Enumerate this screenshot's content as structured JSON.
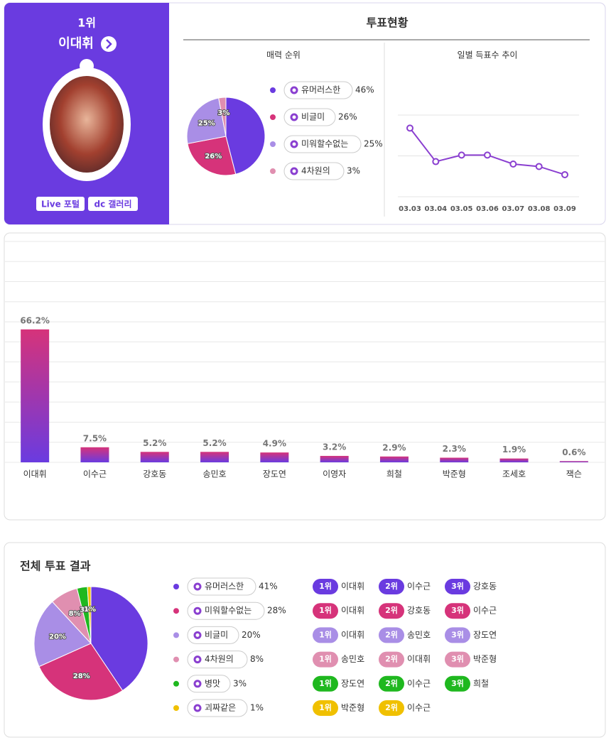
{
  "profile": {
    "rank": "1위",
    "name": "이대휘",
    "links": [
      "Live 포털",
      "dc 갤러리"
    ]
  },
  "vote_status": {
    "title": "투표현황"
  },
  "chart_data": [
    {
      "type": "pie",
      "title": "매력 순위",
      "categories": [
        "유머러스한",
        "비글미",
        "미워할수없는",
        "4차원의"
      ],
      "values": [
        46,
        26,
        25,
        3
      ],
      "value_labels": [
        "46%",
        "26%",
        "25%",
        "3%"
      ],
      "colors": [
        "#6a3be0",
        "#d6337a",
        "#a98ee6",
        "#e08fb0"
      ]
    },
    {
      "type": "line",
      "title": "일별 득표수 추이",
      "x": [
        "03.03",
        "03.04",
        "03.05",
        "03.06",
        "03.07",
        "03.08",
        "03.09"
      ],
      "values": [
        84,
        43,
        51,
        51,
        40,
        37,
        27
      ],
      "color": "#8a3fd0",
      "ylim": [
        0,
        100
      ],
      "yticks": [
        0,
        50,
        100
      ],
      "grid": true
    },
    {
      "type": "bar",
      "categories": [
        "이대휘",
        "이수근",
        "강호동",
        "송민호",
        "장도연",
        "이영자",
        "희철",
        "박준형",
        "조세호",
        "잭슨"
      ],
      "values": [
        66.2,
        7.5,
        5.2,
        5.2,
        4.9,
        3.2,
        2.9,
        2.3,
        1.9,
        0.6
      ],
      "value_labels": [
        "66.2%",
        "7.5%",
        "5.2%",
        "5.2%",
        "4.9%",
        "3.2%",
        "2.9%",
        "2.3%",
        "1.9%",
        "0.6%"
      ],
      "colors": [
        "#d6337a",
        "#6a3be0"
      ],
      "ylim": [
        0,
        110
      ],
      "yticks": [
        0,
        10,
        20,
        30,
        40,
        50,
        60,
        70,
        80,
        90,
        100,
        110
      ],
      "grid": true
    },
    {
      "type": "pie",
      "title": "전체 투표 결과",
      "categories": [
        "유머러스한",
        "미워할수없는",
        "비글미",
        "4차원의",
        "병맛",
        "괴짜같은"
      ],
      "values": [
        41,
        28,
        20,
        8,
        3,
        1
      ],
      "value_labels": [
        "41%",
        "28%",
        "20%",
        "8%",
        "3%",
        "1%"
      ],
      "colors": [
        "#6a3be0",
        "#d6337a",
        "#a98ee6",
        "#e08fb0",
        "#1fb81f",
        "#f0c000"
      ]
    }
  ],
  "rankings": [
    [
      {
        "rank": "1위",
        "name": "이대휘"
      },
      {
        "rank": "2위",
        "name": "이수근"
      },
      {
        "rank": "3위",
        "name": "강호동"
      }
    ],
    [
      {
        "rank": "1위",
        "name": "이대휘"
      },
      {
        "rank": "2위",
        "name": "강호동"
      },
      {
        "rank": "3위",
        "name": "이수근"
      }
    ],
    [
      {
        "rank": "1위",
        "name": "이대휘"
      },
      {
        "rank": "2위",
        "name": "송민호"
      },
      {
        "rank": "3위",
        "name": "장도연"
      }
    ],
    [
      {
        "rank": "1위",
        "name": "송민호"
      },
      {
        "rank": "2위",
        "name": "이대휘"
      },
      {
        "rank": "3위",
        "name": "박준형"
      }
    ],
    [
      {
        "rank": "1위",
        "name": "장도연"
      },
      {
        "rank": "2위",
        "name": "이수근"
      },
      {
        "rank": "3위",
        "name": "희철"
      }
    ],
    [
      {
        "rank": "1위",
        "name": "박준형"
      },
      {
        "rank": "2위",
        "name": "이수근"
      }
    ]
  ]
}
